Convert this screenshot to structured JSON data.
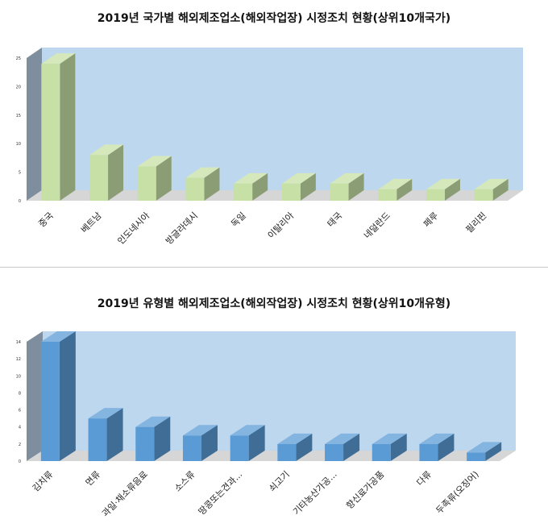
{
  "chart_data": [
    {
      "type": "bar",
      "title": "2019년 국가별 해외제조업소(해외작업장) 시정조치 현황(상위10개국가)",
      "categories": [
        "중국",
        "베트남",
        "인도네시아",
        "방글라데시",
        "독일",
        "이탈리아",
        "태국",
        "네덜란드",
        "페루",
        "필리핀"
      ],
      "values": [
        24,
        8,
        6,
        4,
        3,
        3,
        3,
        2,
        2,
        2
      ],
      "yticks": [
        "0",
        "5",
        "10",
        "15",
        "20",
        "25"
      ],
      "ylim": [
        0,
        25
      ],
      "bar_color": "#c6e0a6",
      "grid": false,
      "legend": "none"
    },
    {
      "type": "bar",
      "title": "2019년 유형별 해외제조업소(해외작업장) 시정조치 현황(상위10개유형)",
      "categories": [
        "김치류",
        "면류",
        "과일·채소류음료",
        "소스류",
        "땅콩또는견과...",
        "쇠고기",
        "기타농산가공...",
        "향신료가공품",
        "다류",
        "두족류(오징어)"
      ],
      "values": [
        14,
        5,
        4,
        3,
        3,
        2,
        2,
        2,
        2,
        1
      ],
      "yticks": [
        "0",
        "2",
        "4",
        "6",
        "8",
        "10",
        "12",
        "14"
      ],
      "ylim": [
        0,
        14
      ],
      "bar_color": "#5b9bd5",
      "grid": false,
      "legend": "none"
    }
  ]
}
